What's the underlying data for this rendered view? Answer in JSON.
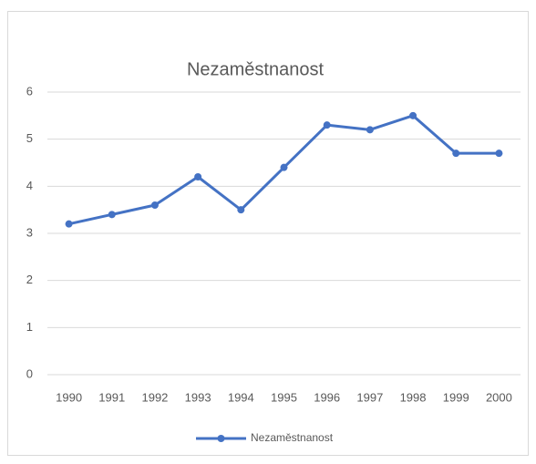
{
  "chart_data": {
    "type": "line",
    "title": "Nezaměstnanost",
    "categories": [
      "1990",
      "1991",
      "1992",
      "1993",
      "1994",
      "1995",
      "1996",
      "1997",
      "1998",
      "1999",
      "2000"
    ],
    "series": [
      {
        "name": "Nezaměstnanost",
        "color": "#4472c4",
        "values": [
          3.2,
          3.4,
          3.6,
          4.2,
          3.5,
          4.4,
          5.3,
          5.2,
          5.5,
          4.7,
          4.7
        ]
      }
    ],
    "ylim": [
      0,
      6
    ],
    "yticks": [
      0,
      1,
      2,
      3,
      4,
      5,
      6
    ],
    "grid": true,
    "legend": "bottom"
  }
}
